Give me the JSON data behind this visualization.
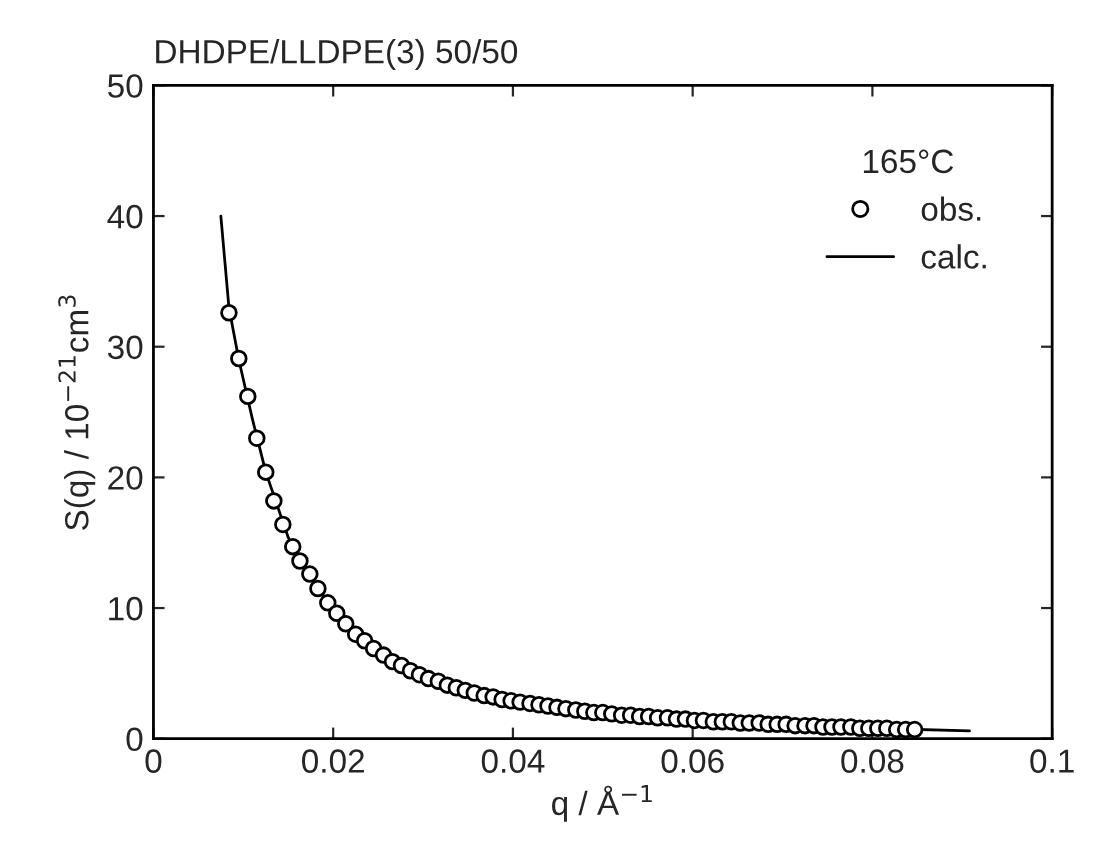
{
  "chart_data": {
    "type": "scatter",
    "title": "DHDPE/LLDPE(3) 50/50",
    "xlabel": "q / Å$^{−1}$",
    "ylabel": "S(q) / 10$^{−21}$cm$^{3}$",
    "legend_title": "165°C",
    "legend": "top right",
    "grid": false,
    "xlim": [
      0,
      0.1
    ],
    "xticks": [
      0,
      0.02,
      0.04,
      0.06,
      0.08,
      0.1
    ],
    "ylim": [
      0,
      50
    ],
    "yticks": [
      0,
      10,
      20,
      30,
      40,
      50
    ],
    "series": [
      {
        "name": "obs.",
        "type": "scatter",
        "marker": "circle",
        "color": "#000000",
        "x": [
          0.0084,
          0.0095,
          0.0105,
          0.0115,
          0.0125,
          0.0134,
          0.0144,
          0.0155,
          0.0163,
          0.0174,
          0.0183,
          0.0194,
          0.0204,
          0.0214,
          0.0225,
          0.0235,
          0.0245,
          0.0256,
          0.0266,
          0.0276,
          0.0286,
          0.0296,
          0.0306,
          0.0317,
          0.0327,
          0.0337,
          0.0347,
          0.0357,
          0.0368,
          0.0378,
          0.0388,
          0.0398,
          0.0408,
          0.0419,
          0.0429,
          0.0439,
          0.0449,
          0.0459,
          0.047,
          0.048,
          0.049,
          0.05,
          0.051,
          0.0521,
          0.0531,
          0.0541,
          0.0551,
          0.0561,
          0.0572,
          0.0582,
          0.0592,
          0.0602,
          0.0612,
          0.0623,
          0.0633,
          0.0643,
          0.0653,
          0.0663,
          0.0674,
          0.0684,
          0.0694,
          0.0704,
          0.0714,
          0.0725,
          0.0735,
          0.0745,
          0.0755,
          0.0765,
          0.0776,
          0.0786,
          0.0796,
          0.0806,
          0.0816,
          0.0827,
          0.0837,
          0.0847
        ],
        "values": [
          32.6,
          29.1,
          26.2,
          23.0,
          20.4,
          18.2,
          16.4,
          14.7,
          13.6,
          12.6,
          11.5,
          10.4,
          9.6,
          8.8,
          8.0,
          7.5,
          6.9,
          6.4,
          5.9,
          5.6,
          5.2,
          4.9,
          4.6,
          4.4,
          4.1,
          3.9,
          3.7,
          3.5,
          3.3,
          3.2,
          3.0,
          2.9,
          2.8,
          2.7,
          2.6,
          2.5,
          2.4,
          2.3,
          2.2,
          2.1,
          2.0,
          2.0,
          1.9,
          1.8,
          1.8,
          1.7,
          1.7,
          1.6,
          1.6,
          1.5,
          1.5,
          1.4,
          1.4,
          1.3,
          1.3,
          1.3,
          1.2,
          1.2,
          1.2,
          1.1,
          1.1,
          1.1,
          1.0,
          1.0,
          1.0,
          0.9,
          0.9,
          0.9,
          0.9,
          0.8,
          0.8,
          0.8,
          0.8,
          0.7,
          0.7,
          0.7
        ]
      },
      {
        "name": "calc.",
        "type": "line",
        "marker": "none",
        "line_style": "solid",
        "color": "#000000",
        "x": [
          0.0075,
          0.0084,
          0.0095,
          0.011,
          0.0125,
          0.015,
          0.0175,
          0.02,
          0.025,
          0.03,
          0.035,
          0.04,
          0.05,
          0.06,
          0.07,
          0.08,
          0.0908
        ],
        "values": [
          40,
          33,
          29,
          24.5,
          20.4,
          15.4,
          12.3,
          9.9,
          6.7,
          5.0,
          3.7,
          2.9,
          2.0,
          1.4,
          1.1,
          0.8,
          0.6
        ]
      }
    ]
  }
}
